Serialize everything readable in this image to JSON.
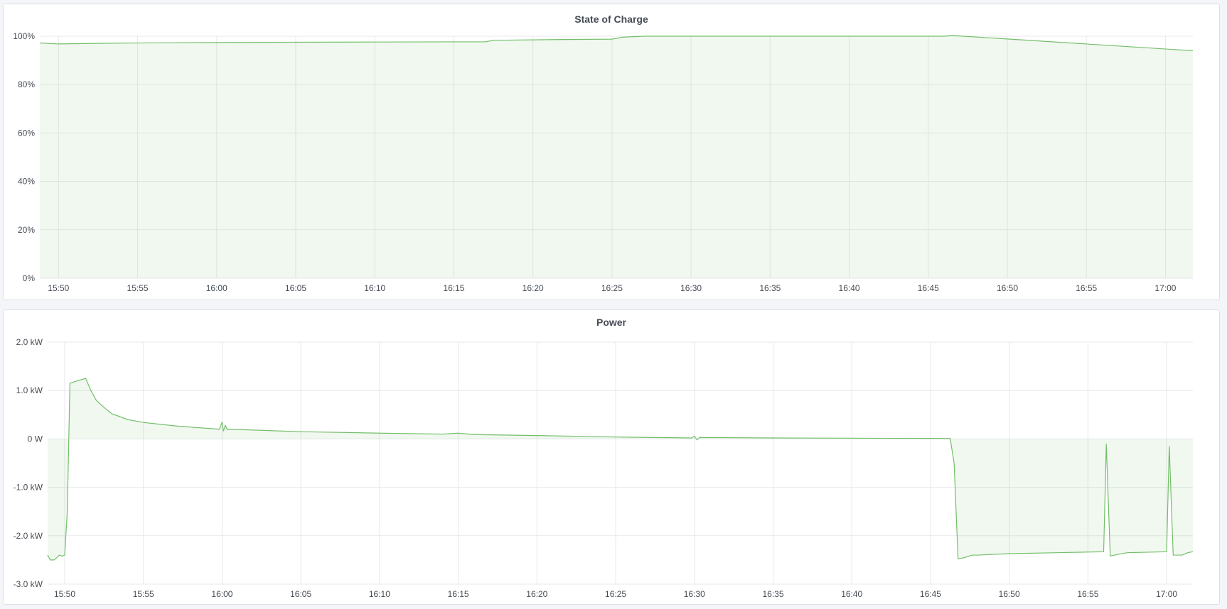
{
  "chart_data": [
    {
      "type": "area",
      "title": "State of Charge",
      "xlim": [
        "15:48:49",
        "17:01:44"
      ],
      "ylim": [
        0,
        100
      ],
      "yticks": [
        "0%",
        "20%",
        "40%",
        "60%",
        "80%",
        "100%"
      ],
      "ytick_values": [
        0,
        20,
        40,
        60,
        80,
        100
      ],
      "xticks": [
        "15:50",
        "15:55",
        "16:00",
        "16:05",
        "16:10",
        "16:15",
        "16:20",
        "16:25",
        "16:30",
        "16:35",
        "16:40",
        "16:45",
        "16:50",
        "16:55",
        "17:00"
      ],
      "grid": true,
      "color": "#73bf69",
      "series": [
        {
          "x": [
            "15:48:49",
            "15:50:00",
            "15:52:00",
            "15:55:00",
            "16:00:00",
            "16:05:00",
            "16:10:00",
            "16:17:00",
            "16:17:30",
            "16:21:30",
            "16:25:00",
            "16:25:40",
            "16:27:00",
            "16:46:00",
            "16:46:30",
            "17:01:44"
          ],
          "y": [
            97.2,
            96.8,
            97.0,
            97.2,
            97.4,
            97.5,
            97.6,
            97.7,
            98.3,
            98.6,
            98.8,
            99.6,
            100,
            100,
            100.3,
            94.0
          ]
        }
      ]
    },
    {
      "type": "area",
      "title": "Power",
      "xlim": [
        "15:48:55",
        "17:01:40"
      ],
      "ylim": [
        -3,
        2
      ],
      "yticks": [
        "-3.0 kW",
        "-2.0 kW",
        "-1.0 kW",
        "0 W",
        "1.0 kW",
        "2.0 kW"
      ],
      "ytick_values": [
        -3,
        -2,
        -1,
        0,
        1,
        2
      ],
      "xticks": [
        "15:50",
        "15:55",
        "16:00",
        "16:05",
        "16:10",
        "16:15",
        "16:20",
        "16:25",
        "16:30",
        "16:35",
        "16:40",
        "16:45",
        "16:50",
        "16:55",
        "17:00"
      ],
      "grid": true,
      "color": "#73bf69",
      "series": [
        {
          "x": [
            "15:48:55",
            "15:49:05",
            "15:49:20",
            "15:49:40",
            "15:49:50",
            "15:50:00",
            "15:50:10",
            "15:50:20",
            "15:51:00",
            "15:51:20",
            "15:51:40",
            "15:52:00",
            "15:52:30",
            "15:53:00",
            "15:54:00",
            "15:55:00",
            "15:57:00",
            "15:59:50",
            "16:00:00",
            "16:00:05",
            "16:00:12",
            "16:00:20",
            "16:00:30",
            "16:05:00",
            "16:10:00",
            "16:14:00",
            "16:15:00",
            "16:16:00",
            "16:20:00",
            "16:25:00",
            "16:29:50",
            "16:30:00",
            "16:30:10",
            "16:30:20",
            "16:35:00",
            "16:46:15",
            "16:46:30",
            "16:46:45",
            "16:47:10",
            "16:47:40",
            "16:48:00",
            "16:50:00",
            "16:53:00",
            "16:56:00",
            "16:56:10",
            "16:56:25",
            "16:57:00",
            "16:57:30",
            "17:00:00",
            "17:00:10",
            "17:00:25",
            "17:01:00",
            "17:01:20",
            "17:01:40"
          ],
          "y": [
            -2.4,
            -2.5,
            -2.5,
            -2.4,
            -2.42,
            -2.4,
            -1.5,
            1.15,
            1.22,
            1.25,
            1.0,
            0.8,
            0.65,
            0.52,
            0.4,
            0.34,
            0.27,
            0.2,
            0.35,
            0.16,
            0.28,
            0.19,
            0.2,
            0.15,
            0.12,
            0.1,
            0.12,
            0.09,
            0.07,
            0.04,
            0.02,
            0.06,
            -0.02,
            0.03,
            0.02,
            0.01,
            -0.5,
            -2.48,
            -2.45,
            -2.4,
            -2.4,
            -2.37,
            -2.35,
            -2.33,
            -0.1,
            -2.42,
            -2.38,
            -2.35,
            -2.33,
            -0.15,
            -2.4,
            -2.4,
            -2.35,
            -2.33
          ]
        }
      ]
    }
  ]
}
